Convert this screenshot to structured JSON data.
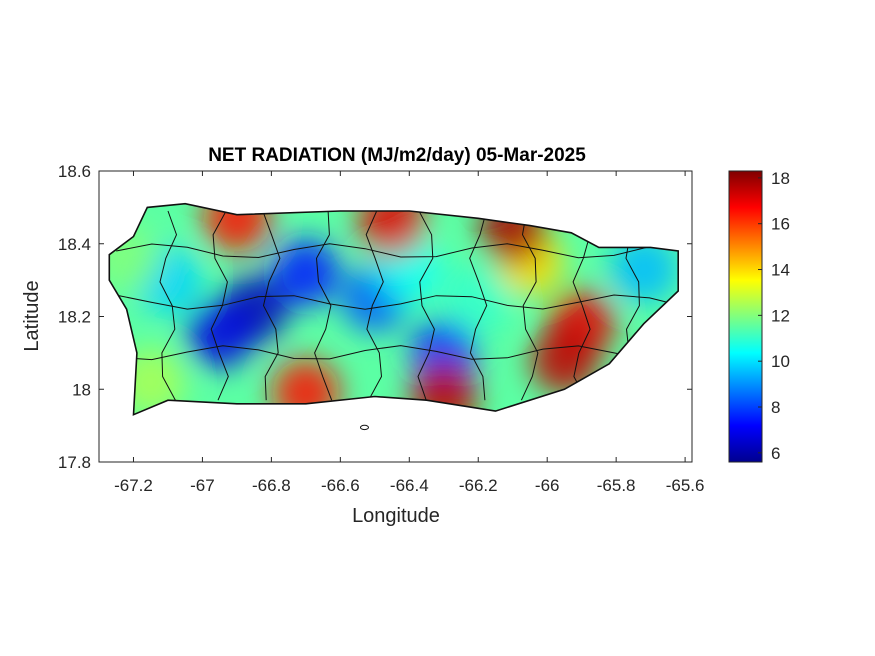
{
  "chart_data": {
    "type": "heatmap",
    "title": "NET RADIATION (MJ/m2/day) 05-Mar-2025",
    "xlabel": "Longitude",
    "ylabel": "Latitude",
    "xlim": [
      -67.3,
      -65.58
    ],
    "ylim": [
      17.8,
      18.6
    ],
    "xticks": [
      -67.2,
      -67,
      -66.8,
      -66.6,
      -66.4,
      -66.2,
      -66,
      -65.8,
      -65.6
    ],
    "xtick_labels": [
      "-67.2",
      "-67",
      "-66.8",
      "-66.6",
      "-66.4",
      "-66.2",
      "-66",
      "-65.8",
      "-65.6"
    ],
    "yticks": [
      18.6,
      18.4,
      18.2,
      18,
      17.8
    ],
    "ytick_labels": [
      "18.6",
      "18.4",
      "18.2",
      "18",
      "17.8"
    ],
    "colormap": "jet",
    "colorbar": {
      "range": [
        5.6,
        18.3
      ],
      "ticks": [
        18,
        16,
        14,
        12,
        10,
        8,
        6
      ],
      "tick_labels": [
        "18",
        "16",
        "14",
        "12",
        "10",
        "8",
        "6"
      ]
    },
    "grid": false,
    "region_outline": [
      [
        -67.27,
        18.37
      ],
      [
        -67.2,
        18.42
      ],
      [
        -67.16,
        18.5
      ],
      [
        -67.05,
        18.51
      ],
      [
        -66.9,
        18.48
      ],
      [
        -66.6,
        18.49
      ],
      [
        -66.4,
        18.49
      ],
      [
        -66.2,
        18.47
      ],
      [
        -66.05,
        18.45
      ],
      [
        -65.93,
        18.43
      ],
      [
        -65.85,
        18.39
      ],
      [
        -65.7,
        18.39
      ],
      [
        -65.62,
        18.38
      ],
      [
        -65.62,
        18.27
      ],
      [
        -65.72,
        18.18
      ],
      [
        -65.82,
        18.07
      ],
      [
        -65.95,
        18.0
      ],
      [
        -66.15,
        17.94
      ],
      [
        -66.35,
        17.97
      ],
      [
        -66.5,
        17.98
      ],
      [
        -66.7,
        17.96
      ],
      [
        -66.9,
        17.96
      ],
      [
        -67.1,
        17.97
      ],
      [
        -67.2,
        17.93
      ],
      [
        -67.19,
        18.1
      ],
      [
        -67.22,
        18.22
      ],
      [
        -67.27,
        18.3
      ]
    ],
    "fields": [
      {
        "lon": -66.85,
        "lat": 18.22,
        "value": 6.3
      },
      {
        "lon": -66.95,
        "lat": 18.15,
        "value": 6.8
      },
      {
        "lon": -66.7,
        "lat": 18.32,
        "value": 7.5
      },
      {
        "lon": -66.5,
        "lat": 18.25,
        "value": 8.3
      },
      {
        "lon": -66.3,
        "lat": 18.1,
        "value": 7.8
      },
      {
        "lon": -67.1,
        "lat": 18.3,
        "value": 9.8
      },
      {
        "lon": -66.4,
        "lat": 18.33,
        "value": 10.5
      },
      {
        "lon": -66.2,
        "lat": 18.25,
        "value": 11.0
      },
      {
        "lon": -65.72,
        "lat": 18.33,
        "value": 9.5
      },
      {
        "lon": -66.05,
        "lat": 18.35,
        "value": 14.0
      },
      {
        "lon": -65.9,
        "lat": 18.18,
        "value": 17.0
      },
      {
        "lon": -65.95,
        "lat": 18.08,
        "value": 17.5
      },
      {
        "lon": -66.3,
        "lat": 17.98,
        "value": 17.5
      },
      {
        "lon": -66.7,
        "lat": 17.99,
        "value": 16.5
      },
      {
        "lon": -66.9,
        "lat": 18.47,
        "value": 16.5
      },
      {
        "lon": -66.45,
        "lat": 18.46,
        "value": 17.0
      },
      {
        "lon": -66.1,
        "lat": 18.44,
        "value": 17.8
      },
      {
        "lon": -67.15,
        "lat": 18.02,
        "value": 12.5
      },
      {
        "lon": -67.22,
        "lat": 18.36,
        "value": 12.0
      }
    ]
  }
}
